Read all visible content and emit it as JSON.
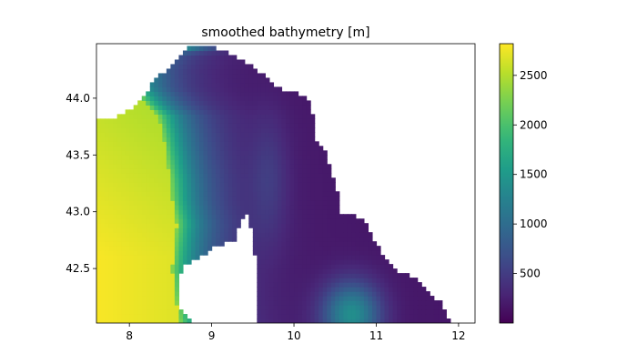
{
  "chart_data": {
    "type": "heatmap",
    "title": "smoothed bathymetry [m]",
    "xlabel": "",
    "ylabel": "",
    "xlim": [
      7.6,
      12.2
    ],
    "ylim": [
      42.02,
      44.48
    ],
    "x_ticks": [
      8,
      9,
      10,
      11,
      12
    ],
    "y_ticks": [
      42.5,
      43.0,
      43.5,
      44.0
    ],
    "x_tick_labels": [
      "8",
      "9",
      "10",
      "11",
      "12"
    ],
    "y_tick_labels": [
      "42.5",
      "43.0",
      "43.5",
      "44.0"
    ],
    "colormap": "viridis",
    "colorbar": {
      "range": [
        0,
        2820
      ],
      "ticks": [
        500,
        1000,
        1500,
        2000,
        2500
      ],
      "tick_labels": [
        "500",
        "1000",
        "1500",
        "2000",
        "2500"
      ]
    },
    "grid": false,
    "depth_field": {
      "coast_profile_lon": [
        [
          44.48,
          8.7
        ],
        [
          44.43,
          8.4
        ],
        [
          44.38,
          8.1
        ],
        [
          44.25,
          8.0
        ],
        [
          44.1,
          8.02
        ],
        [
          43.95,
          8.2
        ],
        [
          43.85,
          8.35
        ],
        [
          43.7,
          8.4
        ],
        [
          43.5,
          8.45
        ],
        [
          43.3,
          8.5
        ],
        [
          43.1,
          8.52
        ],
        [
          42.9,
          8.58
        ],
        [
          42.7,
          8.55
        ],
        [
          42.5,
          8.52
        ],
        [
          42.3,
          8.55
        ],
        [
          42.02,
          8.62
        ]
      ],
      "max_depth_m": 2800,
      "deep_basin_center": [
        42.3,
        7.9
      ],
      "secondary_trough_center": [
        42.1,
        10.7
      ],
      "secondary_trough_depth_m": 1200
    },
    "corsica_outline": [
      [
        9.45,
        42.98
      ],
      [
        9.35,
        42.93
      ],
      [
        9.32,
        42.83
      ],
      [
        9.28,
        42.74
      ],
      [
        9.18,
        42.73
      ],
      [
        9.05,
        42.7
      ],
      [
        8.92,
        42.63
      ],
      [
        8.78,
        42.57
      ],
      [
        8.66,
        42.52
      ],
      [
        8.6,
        42.43
      ],
      [
        8.62,
        42.31
      ],
      [
        8.58,
        42.22
      ],
      [
        8.65,
        42.12
      ],
      [
        8.75,
        42.03
      ],
      [
        9.55,
        42.03
      ],
      [
        9.55,
        42.33
      ],
      [
        9.53,
        42.6
      ],
      [
        9.48,
        42.85
      ],
      [
        9.45,
        42.98
      ]
    ],
    "land_mask_boundary": [
      [
        8.7,
        44.48
      ],
      [
        9.0,
        44.45
      ],
      [
        9.2,
        44.4
      ],
      [
        9.4,
        44.32
      ],
      [
        9.55,
        44.25
      ],
      [
        9.7,
        44.15
      ],
      [
        9.85,
        44.08
      ],
      [
        10.0,
        44.05
      ],
      [
        10.1,
        44.02
      ],
      [
        10.2,
        43.95
      ],
      [
        10.25,
        43.8
      ],
      [
        10.28,
        43.6
      ],
      [
        10.4,
        43.5
      ],
      [
        10.45,
        43.35
      ],
      [
        10.55,
        43.15
      ],
      [
        10.55,
        43.0
      ],
      [
        10.7,
        42.98
      ],
      [
        10.85,
        42.92
      ],
      [
        10.95,
        42.78
      ],
      [
        11.05,
        42.65
      ],
      [
        11.2,
        42.5
      ],
      [
        11.35,
        42.45
      ],
      [
        11.5,
        42.4
      ],
      [
        11.62,
        42.3
      ],
      [
        11.78,
        42.2
      ],
      [
        11.85,
        42.1
      ],
      [
        11.9,
        42.02
      ],
      [
        12.2,
        42.02
      ],
      [
        12.2,
        44.48
      ]
    ],
    "north_coast_boundary": [
      [
        7.6,
        43.82
      ],
      [
        7.8,
        43.82
      ],
      [
        8.0,
        43.9
      ],
      [
        8.2,
        44.05
      ],
      [
        8.3,
        44.15
      ],
      [
        8.45,
        44.25
      ],
      [
        8.6,
        44.35
      ],
      [
        8.7,
        44.42
      ],
      [
        8.7,
        44.48
      ],
      [
        7.6,
        44.48
      ]
    ]
  }
}
